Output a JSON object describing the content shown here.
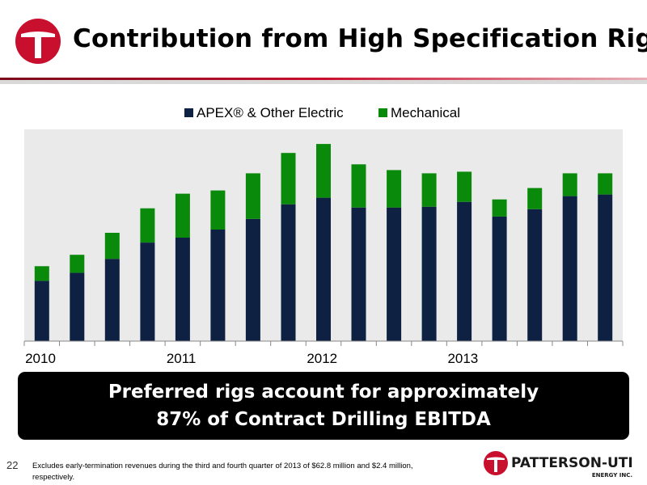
{
  "header": {
    "title": "Contribution from High Specification Rigs",
    "accent_color": "#c8102e"
  },
  "chart_data": {
    "type": "bar",
    "stacked": true,
    "x_tick_labels": [
      "2010",
      "2011",
      "2012",
      "2013"
    ],
    "series": [
      {
        "name": "APEX® & Other Electric",
        "color": "#0f2143",
        "values": [
          74,
          84,
          101,
          121,
          127,
          137,
          150,
          168,
          176,
          164,
          164,
          165,
          171,
          153,
          162,
          178,
          180
        ]
      },
      {
        "name": "Mechanical",
        "color": "#0a8a0a",
        "values": [
          18,
          22,
          32,
          42,
          54,
          48,
          56,
          63,
          66,
          53,
          46,
          41,
          37,
          21,
          26,
          28,
          26
        ]
      }
    ],
    "ylim": [
      0,
      260
    ],
    "grid": false,
    "legend": "top-center",
    "plot_background": "#eaeaea"
  },
  "callout": {
    "line1": "Preferred rigs account for approximately",
    "line2": "87% of Contract Drilling EBITDA"
  },
  "footer": {
    "page_number": "22",
    "footnote": "Excludes early-termination revenues during the third and fourth quarter of 2013 of $62.8 million and $2.4 million, respectively.",
    "brand_name": "PATTERSON-UTI",
    "brand_sub": "ENERGY INC."
  }
}
